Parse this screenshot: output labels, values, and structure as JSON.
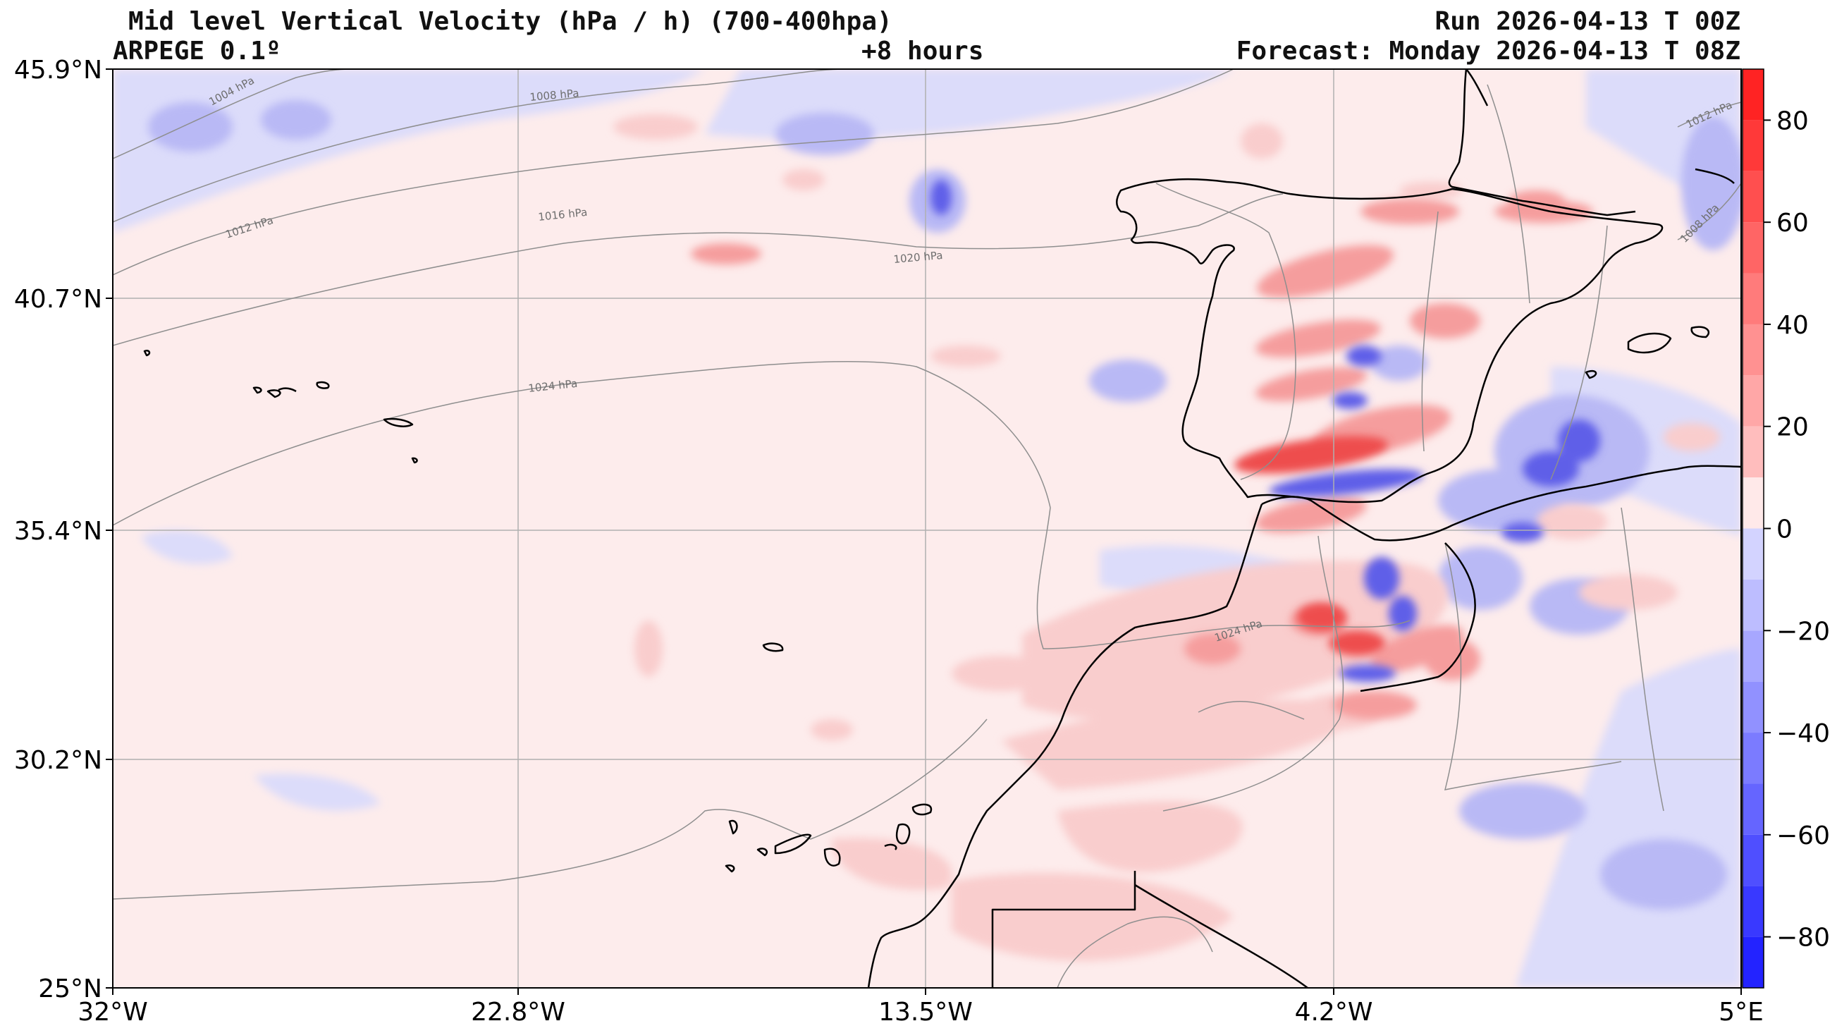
{
  "header": {
    "title": "Mid level Vertical Velocity (hPa / h)  (700-400hpa)",
    "model": "ARPEGE 0.1º",
    "lead": "+8 hours",
    "run": "Run 2026-04-13 T 00Z",
    "forecast": "Forecast: Monday 2026-04-13 T 08Z"
  },
  "map": {
    "lat_labels": [
      "45.9°N",
      "40.7°N",
      "35.4°N",
      "30.2°N",
      "25°N"
    ],
    "lon_labels": [
      "32°W",
      "22.8°W",
      "13.5°W",
      "4.2°W",
      "5°E"
    ],
    "isobar_labels": [
      "1004 hPa",
      "1008 hPa",
      "1012 hPa",
      "1016 hPa",
      "1020 hPa",
      "1024 hPa",
      "1024 hPa",
      "1012 hPa",
      "1008 hPa"
    ]
  },
  "colorbar": {
    "ticks": [
      "80",
      "60",
      "40",
      "20",
      "0",
      "−20",
      "−40",
      "−60",
      "−80"
    ],
    "range": [
      -90,
      90
    ],
    "colors_pos": [
      "#ffe9e9",
      "#ffd3d3",
      "#ffbdbd",
      "#ffa7a7",
      "#ff9191",
      "#ff7b7b",
      "#ff6565",
      "#ff4f4f",
      "#ff3939",
      "#ff2323",
      "#ff0000"
    ],
    "colors_neg": [
      "#e9e9ff",
      "#d3d3ff",
      "#bdbdff",
      "#a7a7ff",
      "#9191ff",
      "#7b7bff",
      "#6565ff",
      "#4f4fff",
      "#3939ff",
      "#2323ff",
      "#0000ff"
    ]
  },
  "colors": {
    "background": "#fdecec",
    "light_blue": "#dcdcfa",
    "mid_blue": "#b9b9f5",
    "deep_blue": "#5f5fe8",
    "light_red": "#f9cdcd",
    "mid_red": "#f59d9d",
    "deep_red": "#ee4d4d"
  }
}
